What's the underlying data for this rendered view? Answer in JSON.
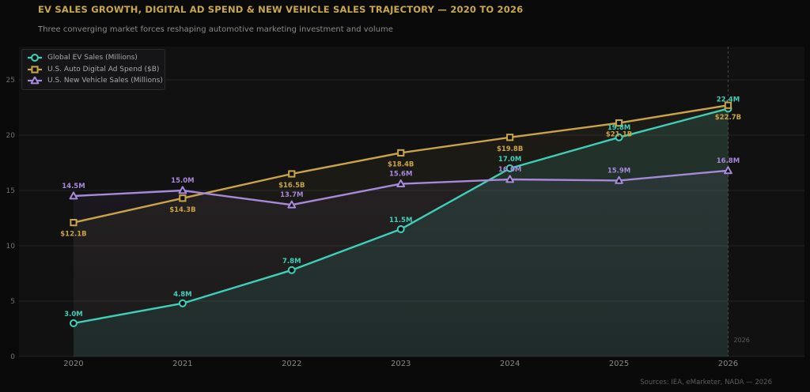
{
  "header": {
    "title": "EV SALES GROWTH, DIGITAL AD SPEND & NEW VEHICLE SALES TRAJECTORY — 2020 TO 2026",
    "subtitle": "Three converging market forces reshaping automotive marketing investment and volume"
  },
  "footer": {
    "source": "Sources: IEA, eMarketer, NADA — 2026"
  },
  "chart_data": {
    "type": "line",
    "x": [
      2020,
      2021,
      2022,
      2023,
      2024,
      2025,
      2026
    ],
    "xlim": [
      2019.5,
      2026.7
    ],
    "ylim": [
      0,
      28
    ],
    "yticks": [
      0,
      5,
      10,
      15,
      20,
      25
    ],
    "grid": true,
    "legend_position": "top-left",
    "colors": {
      "background": "#111112",
      "grid": "#232325",
      "axis_text": "#888888"
    },
    "series": [
      {
        "name": "Global EV Sales (Millions)",
        "color": "#3ecfb8",
        "marker": "circle",
        "values": [
          3.0,
          4.8,
          7.8,
          11.5,
          17.0,
          19.8,
          22.4
        ],
        "labels": [
          "3.0M",
          "4.8M",
          "7.8M",
          "11.5M",
          "17.0M",
          "19.8M",
          "22.4M"
        ]
      },
      {
        "name": "U.S. Auto Digital Ad Spend ($B)",
        "color": "#c9a448",
        "marker": "square",
        "values": [
          12.1,
          14.3,
          16.5,
          18.4,
          19.8,
          21.1,
          22.7
        ],
        "labels": [
          "$12.1B",
          "$14.3B",
          "$16.5B",
          "$18.4B",
          "$19.8B",
          "$21.1B",
          "$22.7B"
        ]
      },
      {
        "name": "U.S. New Vehicle Sales (Millions)",
        "color": "#a689d9",
        "marker": "triangle",
        "values": [
          14.5,
          15.0,
          13.7,
          15.6,
          16.0,
          15.9,
          16.8
        ],
        "labels": [
          "14.5M",
          "15.0M",
          "13.7M",
          "15.6M",
          "16.0M",
          "15.9M",
          "16.8M"
        ]
      }
    ],
    "annotations": [
      {
        "x": 2026,
        "text": "2026"
      }
    ]
  }
}
